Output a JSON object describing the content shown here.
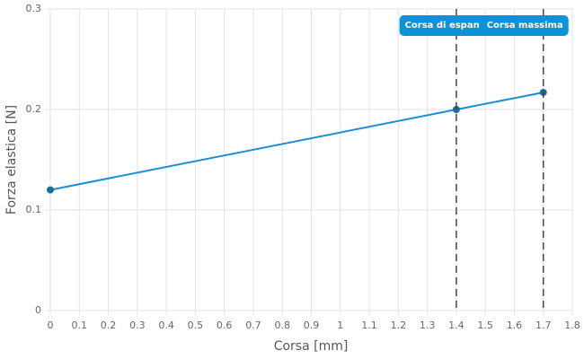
{
  "chart_data": {
    "type": "line",
    "x": [
      0,
      1.4,
      1.7
    ],
    "values": [
      0.12,
      0.2,
      0.217
    ],
    "color": "#1a8fd6",
    "marker_color": "#1b6c96",
    "xlabel": "Corsa [mm]",
    "ylabel": "Forza elastica [N]",
    "xlim": [
      0,
      1.8
    ],
    "ylim": [
      0,
      0.3
    ],
    "xticks": [
      0,
      0.1,
      0.2,
      0.3,
      0.4,
      0.5,
      0.6,
      0.7,
      0.8,
      0.9,
      1,
      1.1,
      1.2,
      1.3,
      1.4,
      1.5,
      1.6,
      1.7,
      1.8
    ],
    "yticks": [
      0,
      0.1,
      0.2,
      0.3
    ],
    "grid": true,
    "annotations": [
      {
        "x": 1.4,
        "label": "Corsa di espan"
      },
      {
        "x": 1.7,
        "label": "Corsa massima"
      }
    ],
    "annotation_color": "#0a93d8"
  }
}
